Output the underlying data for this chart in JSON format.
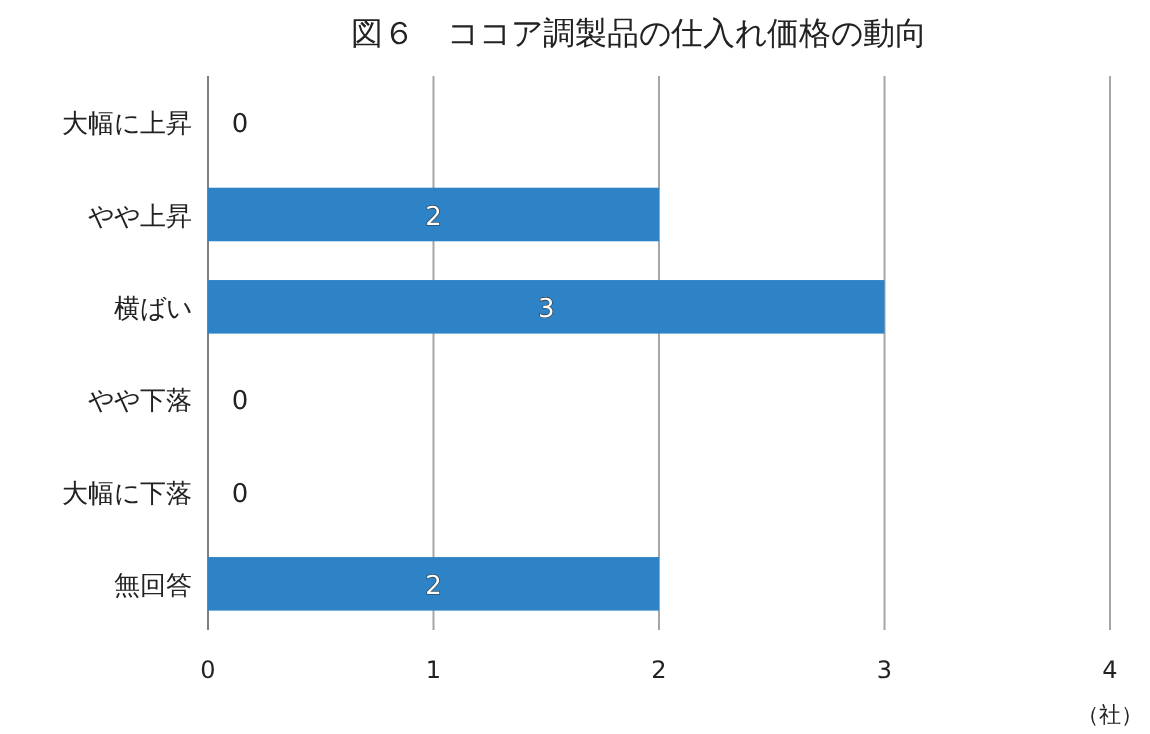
{
  "chart_data": {
    "type": "bar",
    "orientation": "horizontal",
    "title": "図６　ココア調製品の仕入れ価格の動向",
    "categories": [
      "大幅に上昇",
      "やや上昇",
      "横ばい",
      "やや下落",
      "大幅に下落",
      "無回答"
    ],
    "values": [
      0,
      2,
      3,
      0,
      0,
      2
    ],
    "color": "#2e83c6",
    "xlim": [
      0,
      4
    ],
    "xticks": [
      0,
      1,
      2,
      3,
      4
    ],
    "xlabel": "（社）",
    "grid": "x",
    "data_labels": true
  }
}
